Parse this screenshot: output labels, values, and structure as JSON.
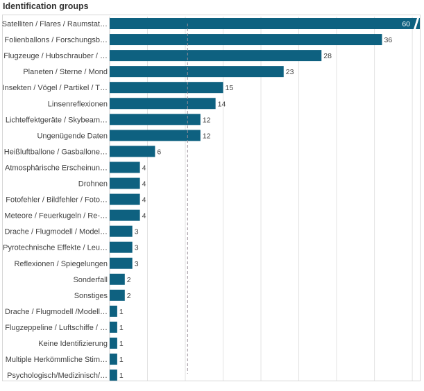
{
  "chart_data": {
    "type": "bar",
    "orientation": "horizontal",
    "title": "Identification groups",
    "categories": [
      "Satelliten / Flares / Raumstat…",
      "Folienballons / Forschungsb…",
      "Flugzeuge / Hubschrauber / …",
      "Planeten / Sterne / Mond",
      "Insekten / Vögel / Partikel / T…",
      "Linsenreflexionen",
      "Lichteffektgeräte / Skybeam…",
      "Ungenügende Daten",
      "Heißluftballone / Gasballone…",
      "Atmosphärische Erscheinun…",
      "Drohnen",
      "Fotofehler / Bildfehler / Foto…",
      "Meteore / Feuerkugeln / Re-…",
      "Drache / Flugmodell / Model…",
      "Pyrotechnische Effekte / Leu…",
      "Reflexionen / Spiegelungen",
      "Sonderfall",
      "Sonstiges",
      "Drache / Flugmodell /Modell…",
      "Flugzeppeline / Luftschiffe / …",
      "Keine Identifizierung",
      "Multiple Herkömmliche Stim…",
      "Psychologisch/Medizinisch/…"
    ],
    "values": [
      60,
      36,
      28,
      23,
      15,
      14,
      12,
      12,
      6,
      4,
      4,
      4,
      4,
      3,
      3,
      3,
      2,
      2,
      1,
      1,
      1,
      1,
      1
    ],
    "value_labels": [
      "60",
      "36",
      "28",
      "23",
      "15",
      "14",
      "12",
      "12",
      "6",
      "4",
      "4",
      "4",
      "4",
      "3",
      "3",
      "3",
      "2",
      "2",
      "1",
      "1",
      "1",
      "1",
      "1"
    ],
    "xlim": [
      0,
      41
    ],
    "first_bar_truncated": true,
    "reference_line_value": 10.3,
    "gridlines": true,
    "bar_color": "#0e6180",
    "grid_color": "#e3e3e3",
    "reference_line_color": "#9a8f9a"
  }
}
